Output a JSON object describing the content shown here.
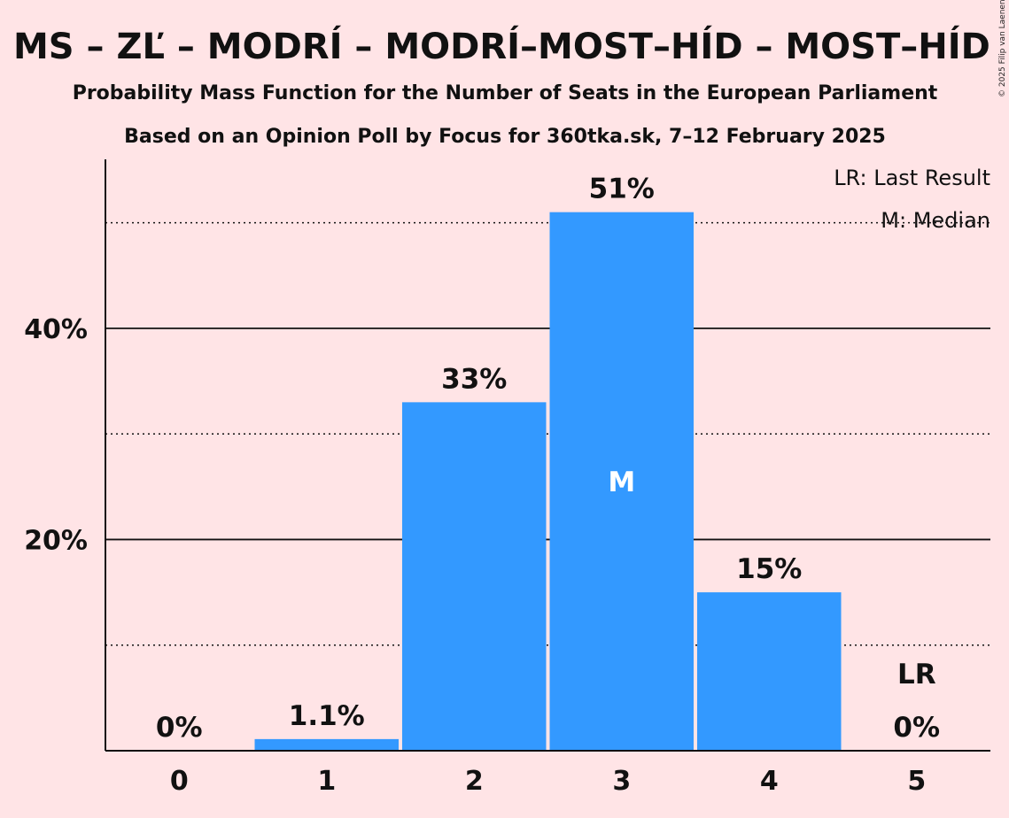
{
  "chart_data": {
    "type": "bar",
    "title": "MS – ZĽ – MODRÍ – MODRÍ–MOST–HÍD – MOST–HÍD",
    "subtitle": "Probability Mass Function for the Number of Seats in the European Parliament",
    "subtitle2": "Based on an Opinion Poll by Focus for 360tka.sk, 7–12 February 2025",
    "copyright": "© 2025 Filip van Laenen",
    "categories": [
      "0",
      "1",
      "2",
      "3",
      "4",
      "5"
    ],
    "values": [
      0,
      1.1,
      33,
      51,
      15,
      0
    ],
    "data_labels": [
      "0%",
      "1.1%",
      "33%",
      "51%",
      "15%",
      "0%"
    ],
    "ylim": [
      0,
      56
    ],
    "yticks": [
      {
        "value": 20,
        "label": "20%"
      },
      {
        "value": 40,
        "label": "40%"
      }
    ],
    "minor_gridlines": [
      10,
      30,
      50
    ],
    "major_gridlines": [
      20,
      40
    ],
    "median_category": "3",
    "median_marker": "M",
    "last_result_category": "5",
    "last_result_marker": "LR",
    "legend": {
      "placement": "top-right",
      "items": [
        "LR: Last Result",
        "M: Median"
      ]
    },
    "colors": {
      "background": "#FFE4E6",
      "bar": "#3399FF",
      "text": "#111111",
      "median_text": "#FFFFFF"
    }
  }
}
